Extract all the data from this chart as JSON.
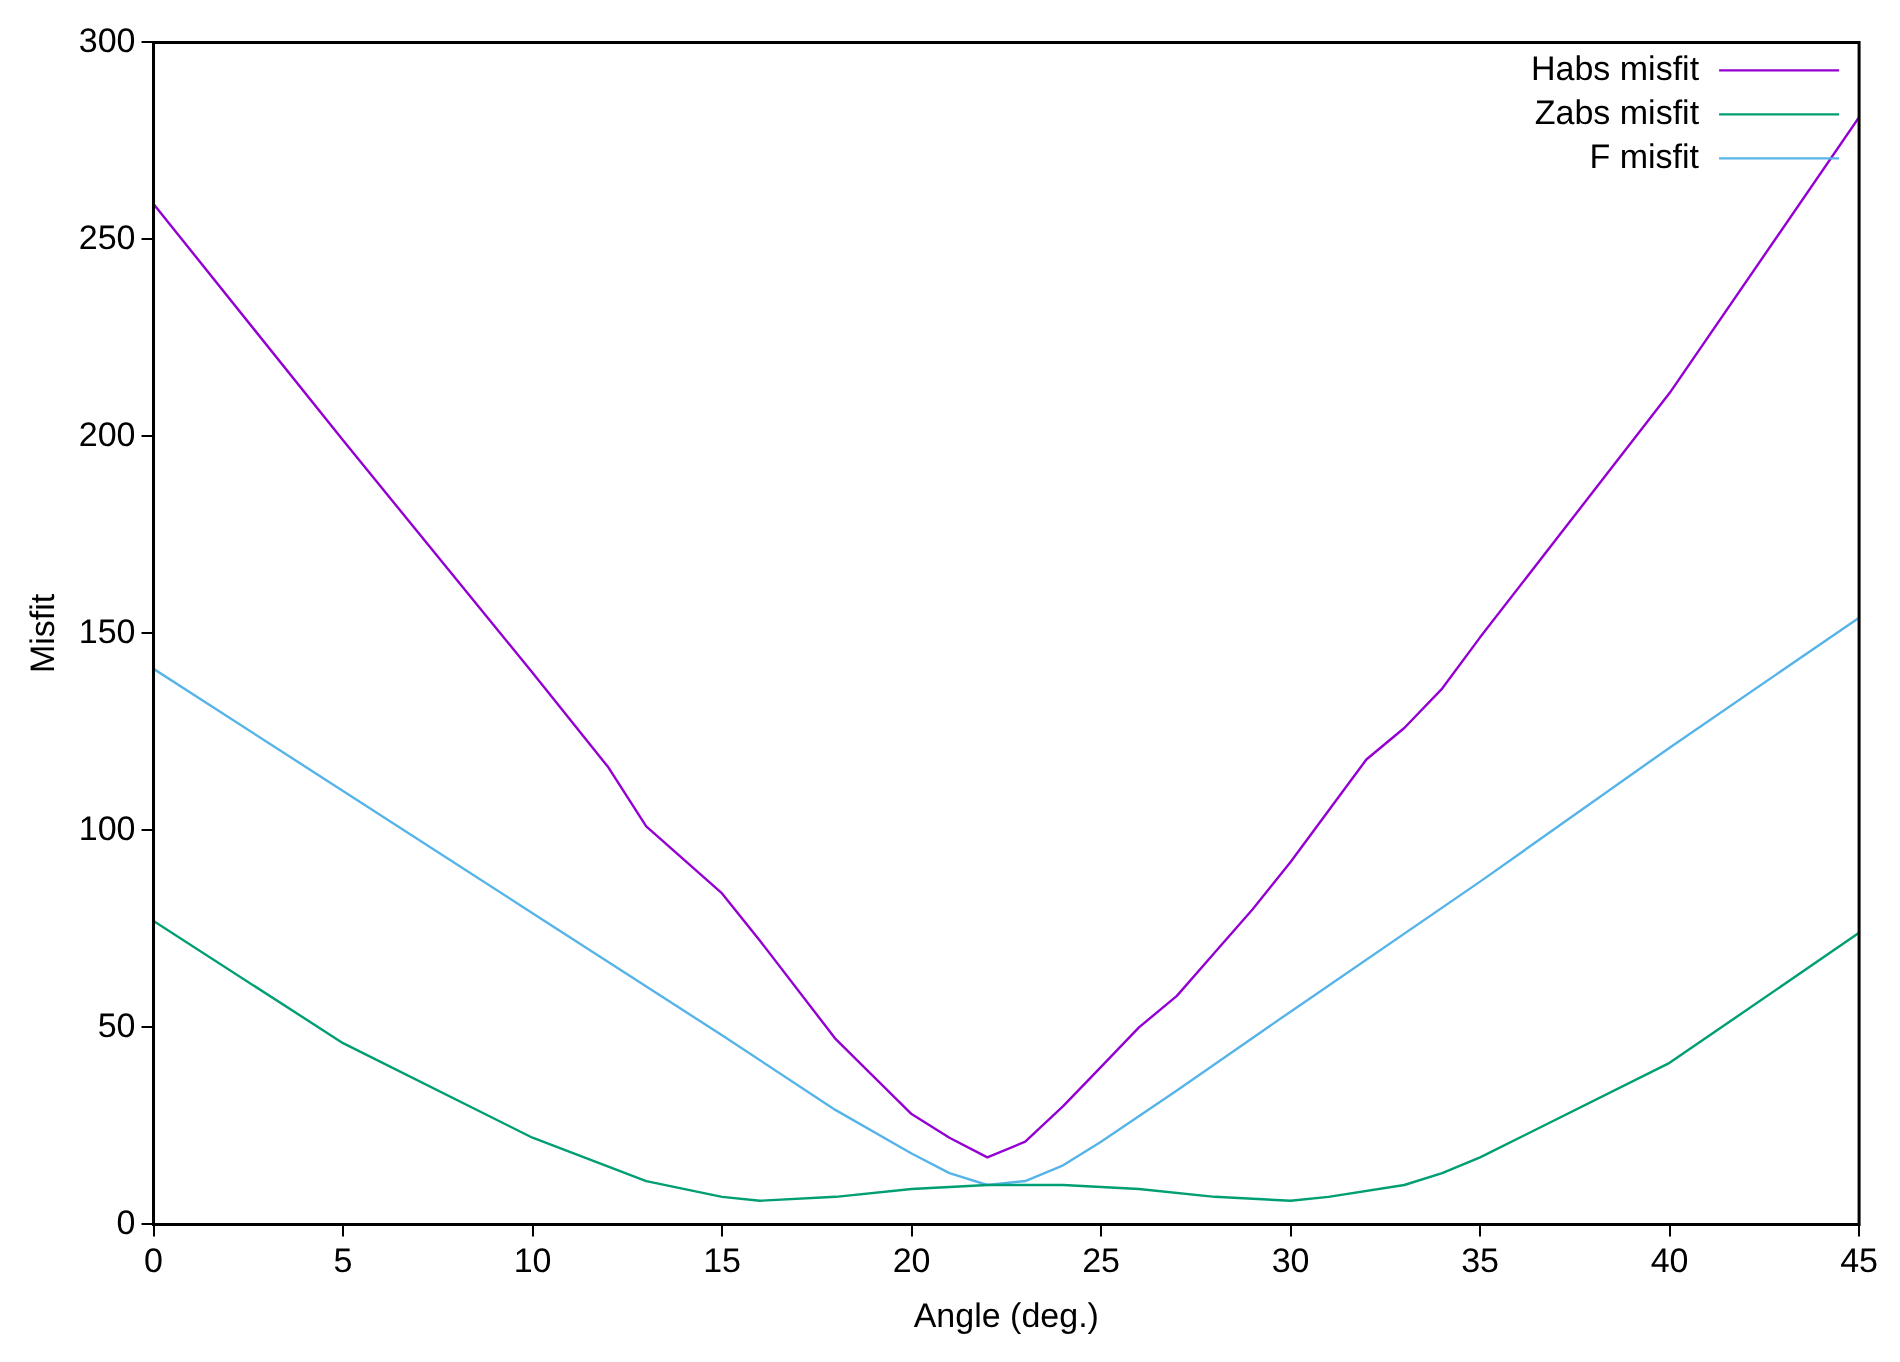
{
  "chart_data": {
    "type": "line",
    "xlabel": "Angle (deg.)",
    "ylabel": "Misfit",
    "xlim": [
      0,
      45
    ],
    "xticks": [
      0,
      5,
      10,
      15,
      20,
      25,
      30,
      35,
      40,
      45
    ],
    "ylim": [
      0,
      300
    ],
    "yticks": [
      0,
      50,
      100,
      150,
      200,
      250,
      300
    ],
    "grid": false,
    "legend": "top right",
    "marker": "none",
    "line_style": "solid",
    "series": [
      {
        "name": "Habs misfit",
        "color": "#9400d3",
        "x": [
          0,
          5,
          10,
          12,
          13,
          15,
          16,
          18,
          20,
          21,
          22,
          23,
          24,
          25,
          26,
          27,
          28,
          29,
          30,
          31,
          32,
          33,
          34,
          35,
          40,
          45
        ],
        "values": [
          259,
          199,
          140,
          116,
          101,
          84,
          72,
          47,
          28,
          22,
          17,
          21,
          30,
          40,
          50,
          58,
          69,
          80,
          92,
          105,
          118,
          126,
          136,
          149,
          211,
          281
        ]
      },
      {
        "name": "Zabs misfit",
        "color": "#009e73",
        "x": [
          0,
          5,
          10,
          13,
          15,
          16,
          18,
          20,
          22,
          24,
          26,
          28,
          30,
          31,
          33,
          34,
          35,
          40,
          45
        ],
        "values": [
          77,
          46,
          22,
          11,
          7,
          6,
          7,
          9,
          10,
          10,
          9,
          7,
          6,
          7,
          10,
          13,
          17,
          41,
          74
        ]
      },
      {
        "name": "F misfit",
        "color": "#56b4e9",
        "x": [
          0,
          5,
          10,
          15,
          18,
          20,
          21,
          22,
          23,
          24,
          25,
          27,
          30,
          35,
          40,
          45
        ],
        "values": [
          141,
          110,
          79,
          48,
          29,
          18,
          13,
          10,
          11,
          15,
          21,
          34,
          54,
          87,
          121,
          154
        ]
      }
    ]
  }
}
